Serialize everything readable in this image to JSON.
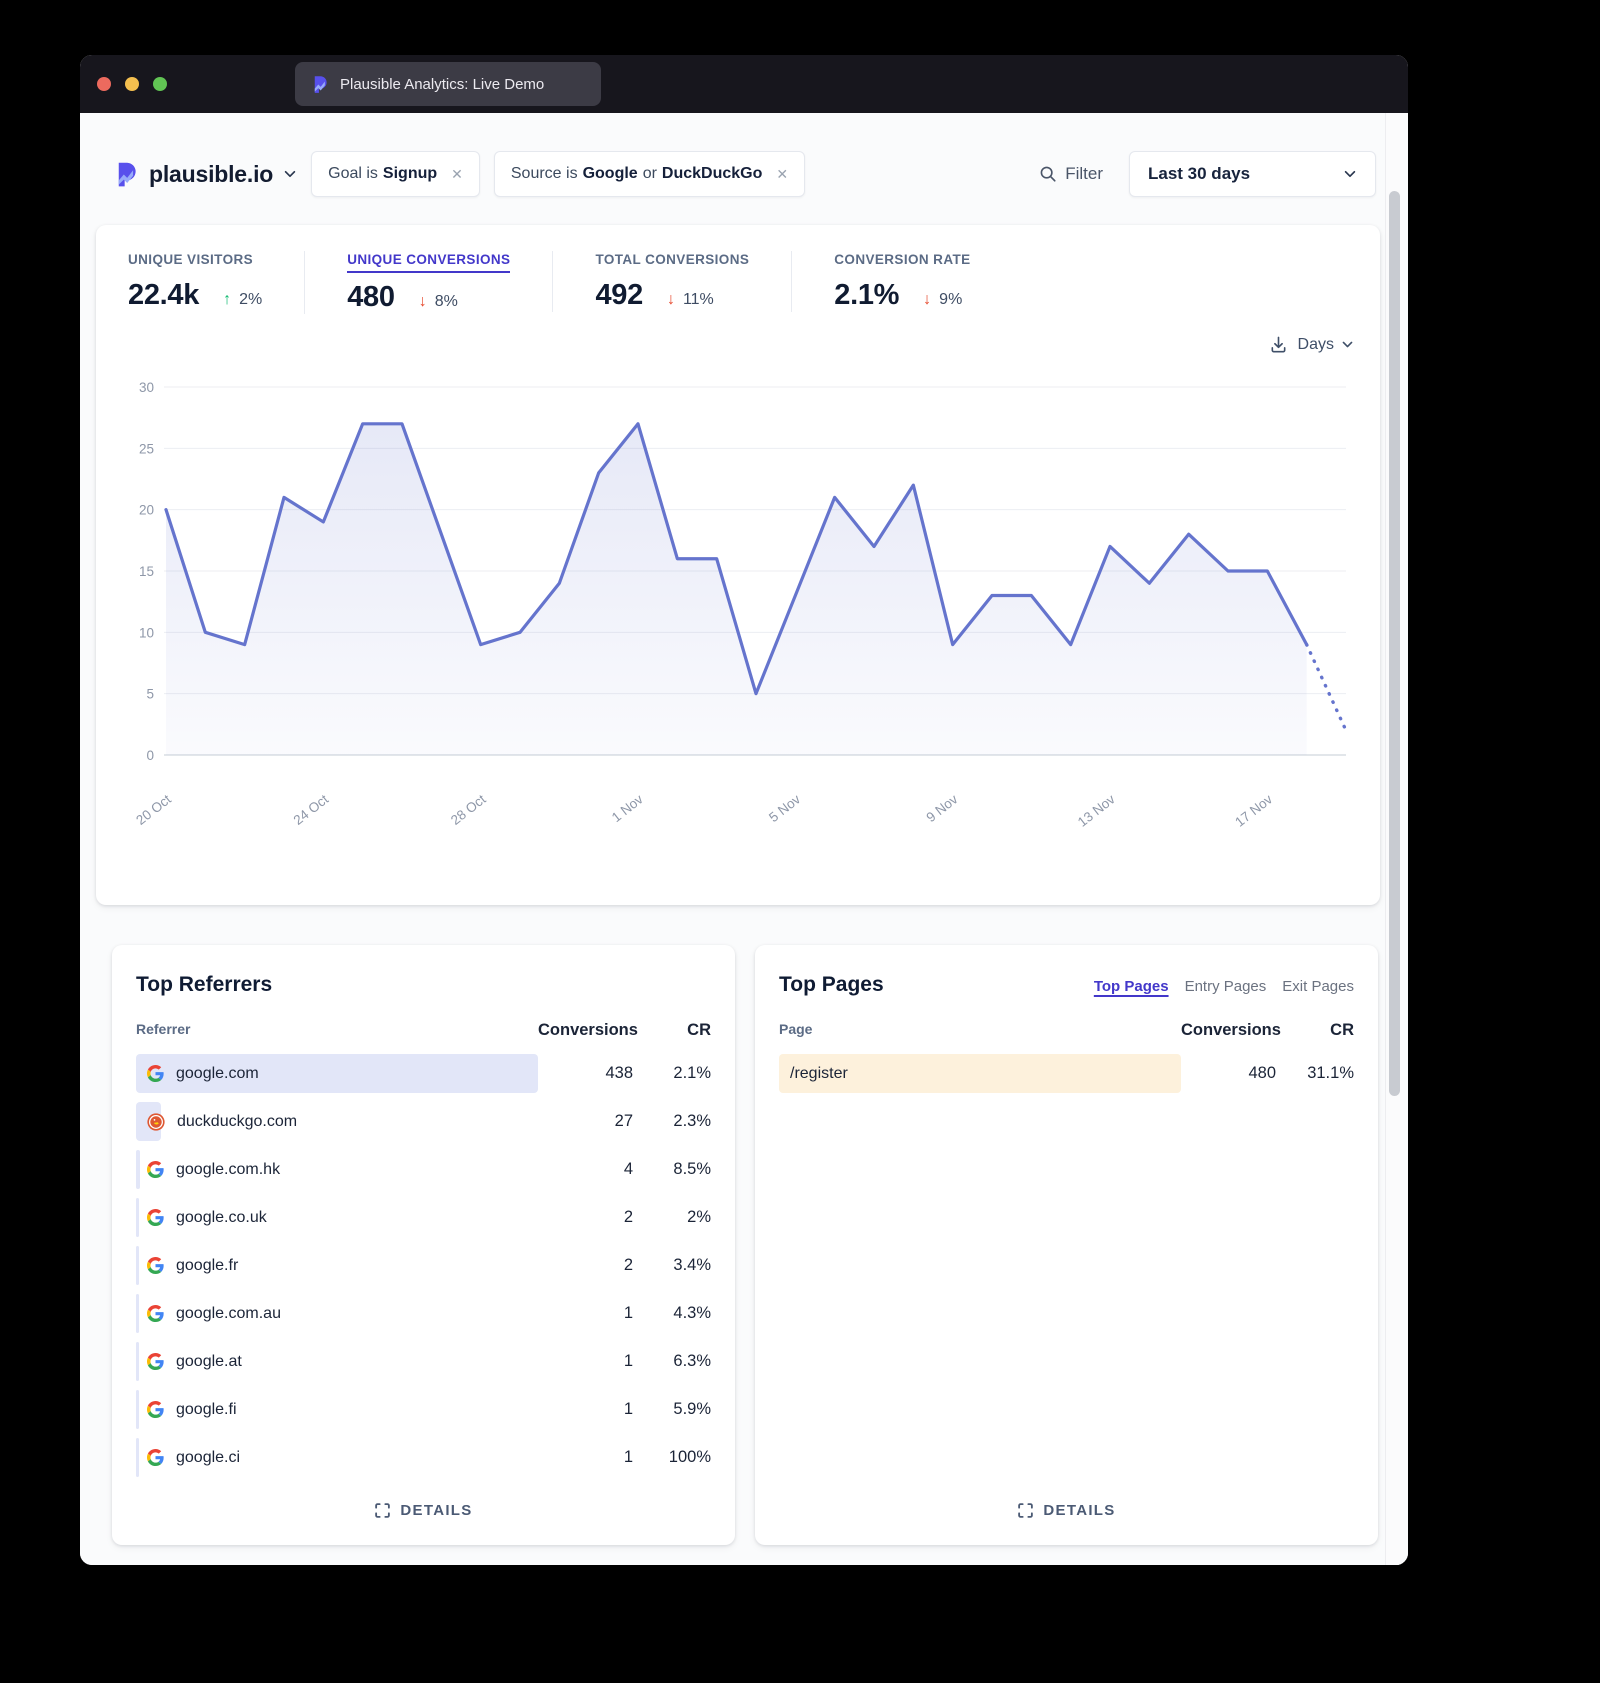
{
  "window": {
    "tab_title": "Plausible Analytics: Live Demo"
  },
  "header": {
    "site_name": "plausible.io",
    "goal_pill": {
      "prefix": "Goal is",
      "value": "Signup",
      "remove_glyph": "✕"
    },
    "source_pill": {
      "prefix": "Source is",
      "value1": "Google",
      "join": "or",
      "value2": "DuckDuckGo",
      "remove_glyph": "✕"
    },
    "filter_label": "Filter",
    "date_range": "Last 30 days"
  },
  "stats": {
    "items": [
      {
        "label": "UNIQUE VISITORS",
        "value": "22.4k",
        "change": "2%",
        "direction": "up",
        "active": false
      },
      {
        "label": "UNIQUE CONVERSIONS",
        "value": "480",
        "change": "8%",
        "direction": "down",
        "active": true
      },
      {
        "label": "TOTAL CONVERSIONS",
        "value": "492",
        "change": "11%",
        "direction": "down",
        "active": false
      },
      {
        "label": "CONVERSION RATE",
        "value": "2.1%",
        "change": "9%",
        "direction": "down",
        "active": false
      }
    ]
  },
  "chart_controls": {
    "interval_label": "Days"
  },
  "chart_data": {
    "type": "area",
    "title": "Unique conversions, last 30 days",
    "values": [
      20,
      10,
      9,
      21,
      19,
      27,
      27,
      18,
      9,
      10,
      14,
      23,
      27,
      16,
      16,
      5,
      13,
      21,
      17,
      22,
      9,
      13,
      13,
      9,
      17,
      14,
      18,
      15,
      15,
      9,
      2
    ],
    "dashed_tail_segments": 1,
    "x_tick_labels": [
      "20 Oct",
      "24 Oct",
      "28 Oct",
      "1 Nov",
      "5 Nov",
      "9 Nov",
      "13 Nov",
      "17 Nov"
    ],
    "x_tick_indices": [
      0,
      4,
      8,
      12,
      16,
      20,
      24,
      28
    ],
    "yticks": [
      0,
      5,
      10,
      15,
      20,
      25,
      30
    ],
    "ylim": [
      0,
      30
    ],
    "grid": true,
    "legend": "none",
    "line_color": "#6574cd",
    "fill_color": "rgba(101,116,205,0.16)"
  },
  "referrers": {
    "title": "Top Referrers",
    "columns": [
      "Referrer",
      "Conversions",
      "CR"
    ],
    "rows": [
      {
        "icon": "google",
        "name": "google.com",
        "conversions": "438",
        "conversions_num": 438,
        "cr": "2.1%"
      },
      {
        "icon": "duckduckgo",
        "name": "duckduckgo.com",
        "conversions": "27",
        "conversions_num": 27,
        "cr": "2.3%"
      },
      {
        "icon": "google",
        "name": "google.com.hk",
        "conversions": "4",
        "conversions_num": 4,
        "cr": "8.5%"
      },
      {
        "icon": "google",
        "name": "google.co.uk",
        "conversions": "2",
        "conversions_num": 2,
        "cr": "2%"
      },
      {
        "icon": "google",
        "name": "google.fr",
        "conversions": "2",
        "conversions_num": 2,
        "cr": "3.4%"
      },
      {
        "icon": "google",
        "name": "google.com.au",
        "conversions": "1",
        "conversions_num": 1,
        "cr": "4.3%"
      },
      {
        "icon": "google",
        "name": "google.at",
        "conversions": "1",
        "conversions_num": 1,
        "cr": "6.3%"
      },
      {
        "icon": "google",
        "name": "google.fi",
        "conversions": "1",
        "conversions_num": 1,
        "cr": "5.9%"
      },
      {
        "icon": "google",
        "name": "google.ci",
        "conversions": "1",
        "conversions_num": 1,
        "cr": "100%"
      }
    ],
    "details_label": "DETAILS"
  },
  "pages": {
    "title": "Top Pages",
    "tabs": [
      {
        "label": "Top Pages",
        "active": true
      },
      {
        "label": "Entry Pages",
        "active": false
      },
      {
        "label": "Exit Pages",
        "active": false
      }
    ],
    "columns": [
      "Page",
      "Conversions",
      "CR"
    ],
    "rows": [
      {
        "name": "/register",
        "conversions": "480",
        "conversions_num": 480,
        "cr": "31.1%"
      }
    ],
    "details_label": "DETAILS"
  },
  "colors": {
    "accent": "#4338ca",
    "line": "#6574cd",
    "up": "#13ba71",
    "down": "#e6492d",
    "referrer_bar": "#e2e6f8",
    "page_bar": "#fdf1dc"
  }
}
